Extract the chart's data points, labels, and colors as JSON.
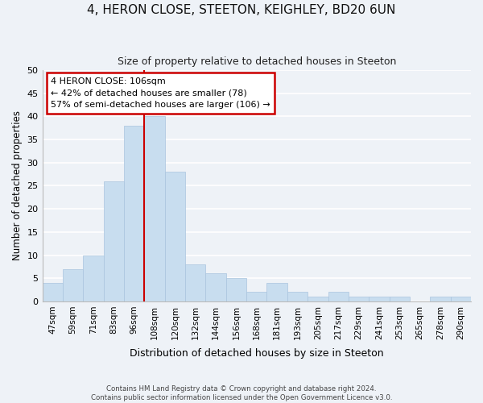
{
  "title": "4, HERON CLOSE, STEETON, KEIGHLEY, BD20 6UN",
  "subtitle": "Size of property relative to detached houses in Steeton",
  "xlabel": "Distribution of detached houses by size in Steeton",
  "ylabel": "Number of detached properties",
  "categories": [
    "47sqm",
    "59sqm",
    "71sqm",
    "83sqm",
    "96sqm",
    "108sqm",
    "120sqm",
    "132sqm",
    "144sqm",
    "156sqm",
    "168sqm",
    "181sqm",
    "193sqm",
    "205sqm",
    "217sqm",
    "229sqm",
    "241sqm",
    "253sqm",
    "265sqm",
    "278sqm",
    "290sqm"
  ],
  "values": [
    4,
    7,
    10,
    26,
    38,
    40,
    28,
    8,
    6,
    5,
    2,
    4,
    2,
    1,
    2,
    1,
    1,
    1,
    0,
    1,
    1
  ],
  "bar_color": "#c8ddef",
  "bar_edge_color": "#aac4de",
  "vline_x_index": 5,
  "vline_color": "#cc0000",
  "annotation_line1": "4 HERON CLOSE: 106sqm",
  "annotation_line2": "← 42% of detached houses are smaller (78)",
  "annotation_line3": "57% of semi-detached houses are larger (106) →",
  "annotation_box_color": "#cc0000",
  "annotation_box_fill": "white",
  "ylim": [
    0,
    50
  ],
  "yticks": [
    0,
    5,
    10,
    15,
    20,
    25,
    30,
    35,
    40,
    45,
    50
  ],
  "footer_line1": "Contains HM Land Registry data © Crown copyright and database right 2024.",
  "footer_line2": "Contains public sector information licensed under the Open Government Licence v3.0.",
  "bg_color": "#eef2f7",
  "grid_color": "white"
}
